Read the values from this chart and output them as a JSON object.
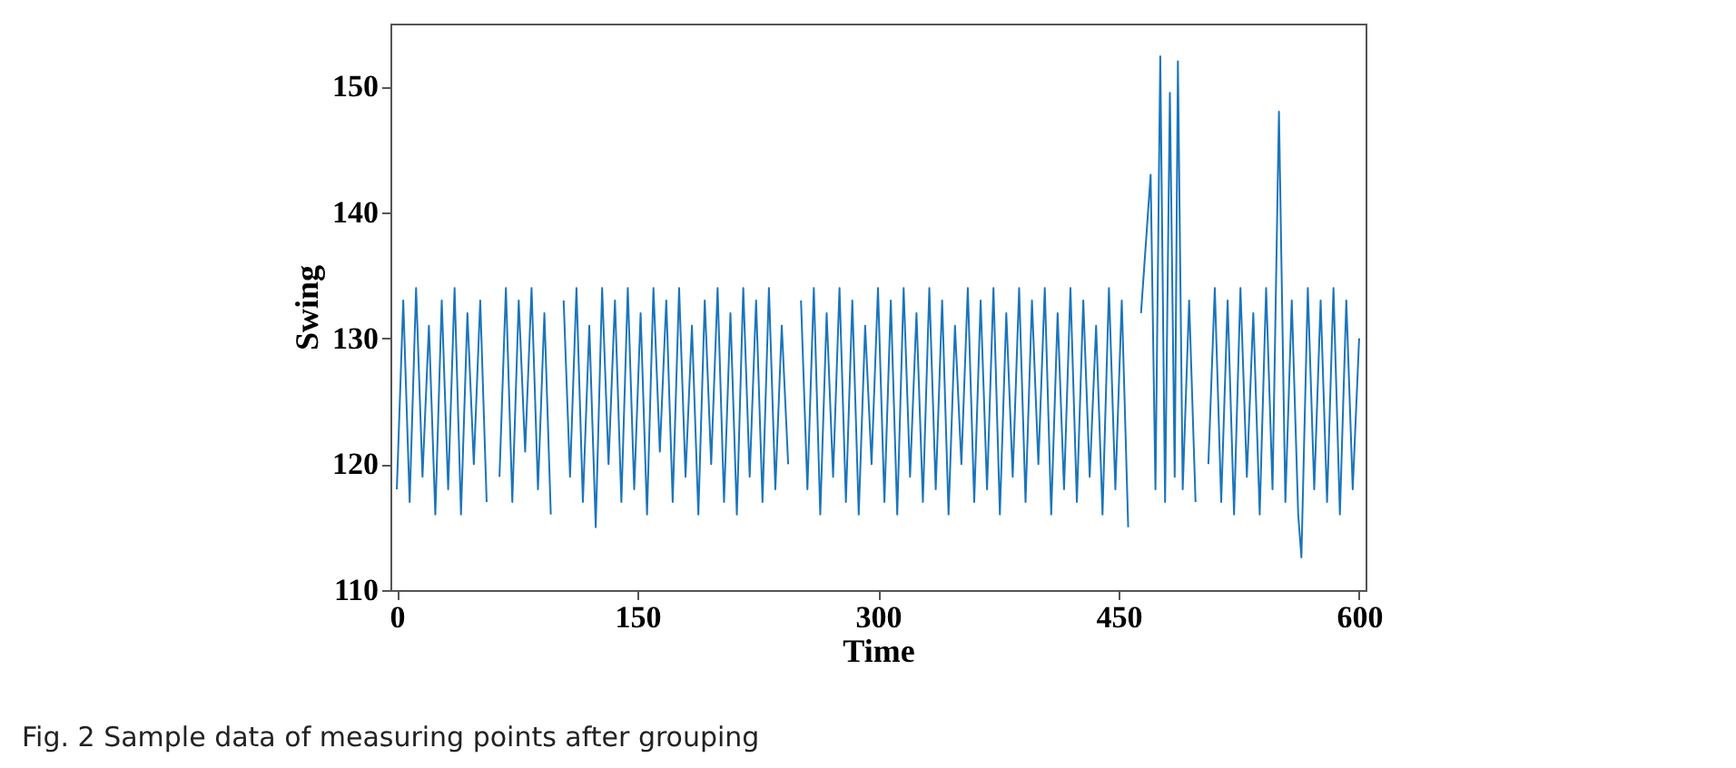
{
  "chart_data": {
    "type": "line",
    "xlabel": "Time",
    "ylabel": "Swing",
    "annotations": [
      "Fig. 2  Sample data of measuring points after grouping"
    ],
    "xlim": [
      -4,
      604
    ],
    "xticks": [
      0,
      150,
      300,
      450,
      600
    ],
    "ylim": [
      110,
      155
    ],
    "yticks": [
      110,
      120,
      130,
      140,
      150
    ],
    "grid": false,
    "legend": false,
    "series": [
      {
        "color": "#1a75bb",
        "x": [
          0,
          4,
          8,
          12,
          16,
          20,
          24,
          28,
          32,
          36,
          40,
          44,
          48,
          52,
          56,
          60,
          64,
          68,
          72,
          76,
          80,
          84,
          88,
          92,
          96,
          100,
          104,
          108,
          112,
          116,
          120,
          124,
          128,
          132,
          136,
          140,
          144,
          148,
          152,
          156,
          160,
          164,
          168,
          172,
          176,
          180,
          184,
          188,
          192,
          196,
          200,
          204,
          208,
          212,
          216,
          220,
          224,
          228,
          232,
          236,
          240,
          244,
          248,
          252,
          256,
          260,
          264,
          268,
          272,
          276,
          280,
          284,
          288,
          292,
          296,
          300,
          304,
          308,
          312,
          316,
          320,
          324,
          328,
          332,
          336,
          340,
          344,
          348,
          352,
          356,
          360,
          364,
          368,
          372,
          376,
          380,
          384,
          388,
          392,
          396,
          400,
          404,
          408,
          412,
          416,
          420,
          424,
          428,
          432,
          436,
          440,
          444,
          448,
          452,
          456,
          460,
          464,
          470,
          473,
          476,
          479,
          482,
          485,
          487,
          490,
          494,
          498,
          503,
          506,
          510,
          514,
          518,
          522,
          526,
          530,
          534,
          538,
          542,
          546,
          550,
          554,
          558,
          562,
          564,
          568,
          572,
          576,
          580,
          584,
          588,
          592,
          596,
          600
        ],
        "values": [
          118,
          133,
          117,
          134,
          119,
          131,
          116,
          133,
          118,
          134,
          116,
          132,
          120,
          133,
          117,
          null,
          119,
          134,
          117,
          133,
          121,
          134,
          118,
          132,
          116,
          null,
          133,
          119,
          134,
          117,
          131,
          115,
          134,
          120,
          133,
          117,
          134,
          118,
          132,
          116,
          134,
          121,
          133,
          117,
          134,
          119,
          131,
          116,
          133,
          120,
          134,
          117,
          132,
          116,
          134,
          119,
          133,
          117,
          134,
          118,
          131,
          120,
          null,
          133,
          118,
          134,
          116,
          132,
          119,
          134,
          117,
          133,
          116,
          131,
          120,
          134,
          117,
          133,
          116,
          134,
          119,
          132,
          117,
          134,
          118,
          133,
          116,
          131,
          120,
          134,
          117,
          133,
          118,
          134,
          116,
          132,
          119,
          134,
          117,
          133,
          120,
          134,
          116,
          132,
          118,
          134,
          117,
          133,
          119,
          131,
          116,
          134,
          118,
          133,
          115,
          null,
          132,
          143,
          118,
          152.4,
          117,
          149.5,
          119,
          152,
          118,
          133,
          117,
          null,
          120,
          134,
          117,
          133,
          116,
          134,
          119,
          132,
          116,
          134,
          118,
          148,
          117,
          133,
          116,
          112.6,
          134,
          118,
          133,
          117,
          134,
          116,
          133,
          118,
          130
        ]
      }
    ]
  }
}
